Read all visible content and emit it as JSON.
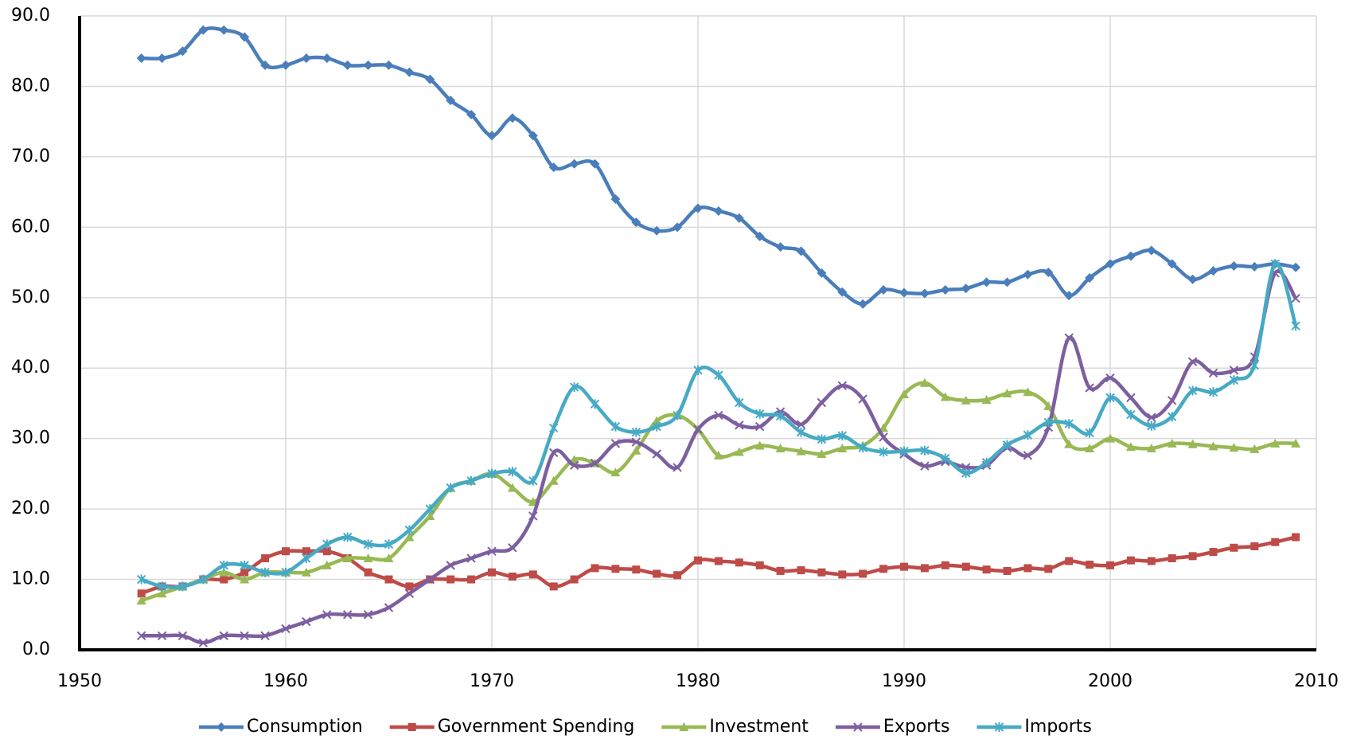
{
  "chart_data": {
    "type": "line",
    "x": [
      1953,
      1954,
      1955,
      1956,
      1957,
      1958,
      1959,
      1960,
      1961,
      1962,
      1963,
      1964,
      1965,
      1966,
      1967,
      1968,
      1969,
      1970,
      1971,
      1972,
      1973,
      1974,
      1975,
      1976,
      1977,
      1978,
      1979,
      1980,
      1981,
      1982,
      1983,
      1984,
      1985,
      1986,
      1987,
      1988,
      1989,
      1990,
      1991,
      1992,
      1993,
      1994,
      1995,
      1996,
      1997,
      1998,
      1999,
      2000,
      2001,
      2002,
      2003,
      2004,
      2005,
      2006,
      2007,
      2008,
      2009
    ],
    "series": [
      {
        "name": "Consumption",
        "color": "#4a7ebb",
        "marker": "diamond",
        "values": [
          84,
          84,
          85,
          88,
          88,
          87,
          83,
          83,
          84,
          84,
          83,
          83,
          83,
          82,
          81,
          78,
          76,
          73,
          75.5,
          73,
          68.5,
          69,
          69,
          64,
          60.7,
          59.5,
          60,
          62.7,
          62.3,
          61.3,
          58.7,
          57.2,
          56.6,
          53.5,
          50.8,
          49.1,
          51.1,
          50.7,
          50.6,
          51.1,
          51.3,
          52.2,
          52.2,
          53.3,
          53.6,
          50.3,
          52.8,
          54.8,
          55.9,
          56.7,
          54.8,
          52.6,
          53.8,
          54.5,
          54.4,
          54.8,
          54.3
        ]
      },
      {
        "name": "Government Spending",
        "color": "#be4b48",
        "marker": "square",
        "values": [
          8,
          9,
          9,
          10,
          10,
          11,
          13,
          14,
          14,
          14,
          13,
          11,
          10,
          9,
          10,
          10,
          10,
          11,
          10.4,
          10.7,
          9,
          10,
          11.6,
          11.5,
          11.4,
          10.8,
          10.6,
          12.7,
          12.6,
          12.4,
          12,
          11.2,
          11.3,
          11,
          10.7,
          10.8,
          11.5,
          11.8,
          11.6,
          12,
          11.8,
          11.4,
          11.2,
          11.6,
          11.5,
          12.6,
          12.1,
          12,
          12.7,
          12.6,
          13,
          13.3,
          13.9,
          14.5,
          14.7,
          15.3,
          16
        ]
      },
      {
        "name": "Investment",
        "color": "#98b954",
        "marker": "triangle",
        "values": [
          7,
          8,
          9,
          10,
          11,
          10,
          11,
          11,
          11,
          12,
          13,
          13,
          13,
          16,
          19,
          23,
          24,
          25,
          23,
          21,
          24,
          27,
          26.5,
          25.2,
          28.3,
          32.5,
          33.3,
          31.3,
          27.6,
          28.1,
          29,
          28.6,
          28.2,
          27.8,
          28.6,
          29,
          31.5,
          36.3,
          37.9,
          35.9,
          35.4,
          35.5,
          36.4,
          36.6,
          34.6,
          29.2,
          28.6,
          30,
          28.8,
          28.6,
          29.3,
          29.2,
          28.9,
          28.7,
          28.5,
          29.3,
          29.3
        ]
      },
      {
        "name": "Exports",
        "color": "#7d5fa0",
        "marker": "x",
        "values": [
          2,
          2,
          2,
          1,
          2,
          2,
          2,
          3,
          4,
          5,
          5,
          5,
          6,
          8,
          10,
          12,
          13,
          14,
          14.5,
          19,
          28,
          26.2,
          26.5,
          29.3,
          29.5,
          27.8,
          25.9,
          31.3,
          33.3,
          31.9,
          31.7,
          33.8,
          32,
          35.1,
          37.5,
          35.6,
          30.2,
          27.8,
          26.1,
          26.7,
          25.9,
          26.2,
          28.7,
          27.6,
          31.6,
          44.3,
          37.2,
          38.6,
          35.8,
          33,
          35.4,
          40.9,
          39.3,
          39.7,
          41.6,
          53.5,
          49.9
        ]
      },
      {
        "name": "Imports",
        "color": "#46aac5",
        "marker": "star",
        "values": [
          10,
          9,
          9,
          10,
          12,
          12,
          11,
          11,
          13,
          15,
          16,
          15,
          15,
          17,
          20,
          23,
          24,
          25,
          25.3,
          24,
          31.5,
          37.3,
          34.9,
          31.7,
          30.9,
          31.7,
          33.3,
          39.7,
          39,
          35.1,
          33.5,
          33.2,
          30.9,
          29.9,
          30.4,
          28.7,
          28.1,
          28.2,
          28.3,
          27.2,
          25.1,
          26.6,
          29.1,
          30.5,
          32.3,
          32.1,
          30.8,
          35.8,
          33.4,
          31.8,
          33.1,
          36.8,
          36.6,
          38.3,
          40.4,
          54.8,
          46
        ]
      }
    ],
    "xlim": [
      1950,
      2010
    ],
    "xticks": [
      1950,
      1960,
      1970,
      1980,
      1990,
      2000,
      2010
    ],
    "ylim": [
      0,
      90
    ],
    "yticks": [
      {
        "value": 0,
        "label": "0.0"
      },
      {
        "value": 10,
        "label": "10.0"
      },
      {
        "value": 20,
        "label": "20.0"
      },
      {
        "value": 30,
        "label": "30.0"
      },
      {
        "value": 40,
        "label": "40.0"
      },
      {
        "value": 50,
        "label": "50.0"
      },
      {
        "value": 60,
        "label": "60.0"
      },
      {
        "value": 70,
        "label": "70.0"
      },
      {
        "value": 80,
        "label": "80.0"
      },
      {
        "value": 90,
        "label": "90.0"
      }
    ],
    "grid": true,
    "legend": "bottom"
  }
}
